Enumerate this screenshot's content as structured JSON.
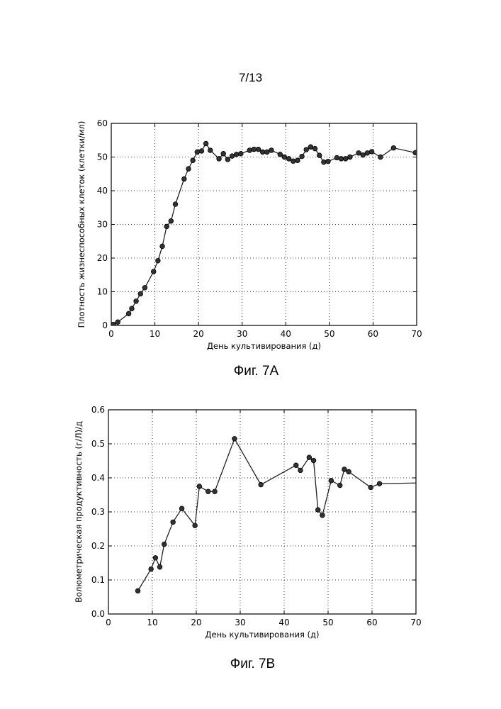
{
  "page": {
    "number": "7/13"
  },
  "figures": [
    {
      "caption": "Фиг. 7A"
    },
    {
      "caption": "Фиг. 7B"
    }
  ],
  "chart_data": [
    {
      "type": "line",
      "xlabel": "День культивирования (д)",
      "ylabel": "Плотность жизнеспособных клеток (клетки/мл)",
      "xlim": [
        0,
        70
      ],
      "ylim": [
        0,
        60
      ],
      "xticks": [
        0,
        10,
        20,
        30,
        40,
        50,
        60,
        70
      ],
      "yticks": [
        0,
        10,
        20,
        30,
        40,
        50,
        60
      ],
      "grid": true,
      "legend": "none",
      "series": [
        {
          "x": [
            0.5,
            1.5,
            4,
            4.7,
            5.7,
            6.7,
            7.7,
            9.7,
            10.7,
            11.7,
            12.7,
            13.7,
            14.7,
            16.7,
            17.7,
            18.7,
            19.7,
            20.7,
            21.7,
            22.7,
            24.7,
            25.7,
            26.7,
            27.7,
            28.7,
            29.7,
            31.7,
            32.7,
            33.7,
            34.7,
            35.7,
            36.7,
            38.7,
            39.7,
            40.7,
            41.7,
            42.7,
            43.7,
            44.7,
            45.7,
            46.7,
            47.7,
            48.7,
            49.7,
            51.7,
            52.7,
            53.7,
            54.7,
            56.7,
            57.7,
            58.7,
            59.7,
            61.7,
            64.7,
            69.7,
            70.7
          ],
          "y": [
            0.3,
            1.0,
            3.5,
            5.0,
            7.2,
            9.4,
            11.2,
            16.0,
            19.2,
            23.5,
            29.4,
            31.0,
            36.0,
            43.5,
            46.5,
            49.0,
            51.5,
            51.8,
            54.0,
            52.0,
            49.5,
            51.0,
            49.3,
            50.3,
            50.8,
            51.0,
            52.0,
            52.3,
            52.3,
            51.5,
            51.5,
            52.0,
            50.8,
            50.0,
            49.5,
            48.8,
            49.0,
            50.2,
            52.2,
            53.0,
            52.5,
            50.5,
            48.5,
            48.7,
            49.8,
            49.5,
            49.5,
            50.0,
            51.2,
            50.6,
            51.2,
            51.6,
            50.0,
            52.7,
            51.3,
            51.0
          ]
        }
      ]
    },
    {
      "type": "line",
      "xlabel": "День культивирования (д)",
      "ylabel": "Волюметрическая продуктивность (г/Л)/д",
      "xlim": [
        0,
        70
      ],
      "ylim": [
        0,
        0.6
      ],
      "xticks": [
        0,
        10,
        20,
        30,
        40,
        50,
        60,
        70
      ],
      "yticks": [
        0.0,
        0.1,
        0.2,
        0.3,
        0.4,
        0.5,
        0.6
      ],
      "grid": true,
      "legend": "none",
      "series": [
        {
          "x": [
            6.7,
            9.7,
            10.7,
            11.7,
            12.7,
            14.7,
            16.7,
            19.7,
            20.7,
            22.7,
            24.2,
            28.7,
            34.7,
            42.7,
            43.7,
            45.7,
            46.7,
            47.7,
            48.7,
            50.7,
            52.7,
            53.7,
            54.7,
            59.7,
            61.7,
            70.7
          ],
          "y": [
            0.068,
            0.132,
            0.165,
            0.138,
            0.205,
            0.27,
            0.31,
            0.26,
            0.375,
            0.36,
            0.36,
            0.515,
            0.38,
            0.437,
            0.422,
            0.46,
            0.451,
            0.306,
            0.29,
            0.392,
            0.378,
            0.425,
            0.418,
            0.372,
            0.383,
            0.385
          ]
        }
      ]
    }
  ]
}
